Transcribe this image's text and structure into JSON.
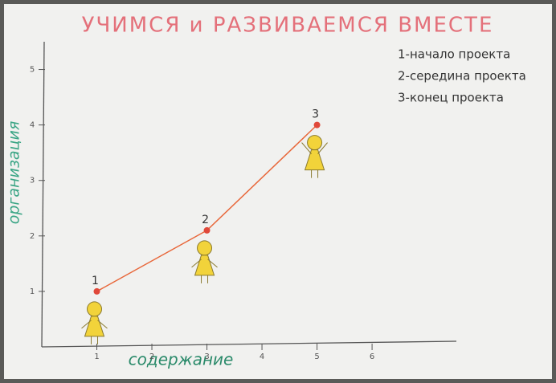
{
  "chart_data": {
    "type": "line",
    "title": "УЧИМСЯ и РАЗВИВАЕМСЯ ВМЕСТЕ",
    "notes": [
      "1-начало проекта",
      "2-середина проекта",
      "3-конец проекта"
    ],
    "x_label": "содержание",
    "y_label": "организация",
    "x": [
      1,
      3,
      5
    ],
    "series": [
      {
        "color": "#e8673a",
        "values": [
          1,
          2.1,
          4
        ]
      }
    ],
    "point_labels": [
      "1",
      "2",
      "3"
    ],
    "xlim": [
      0,
      7.4
    ],
    "ylim": [
      0,
      5.5
    ],
    "xticks": [
      1,
      2,
      3,
      4,
      5,
      6
    ],
    "yticks": [
      1,
      2,
      3,
      4,
      5
    ]
  }
}
